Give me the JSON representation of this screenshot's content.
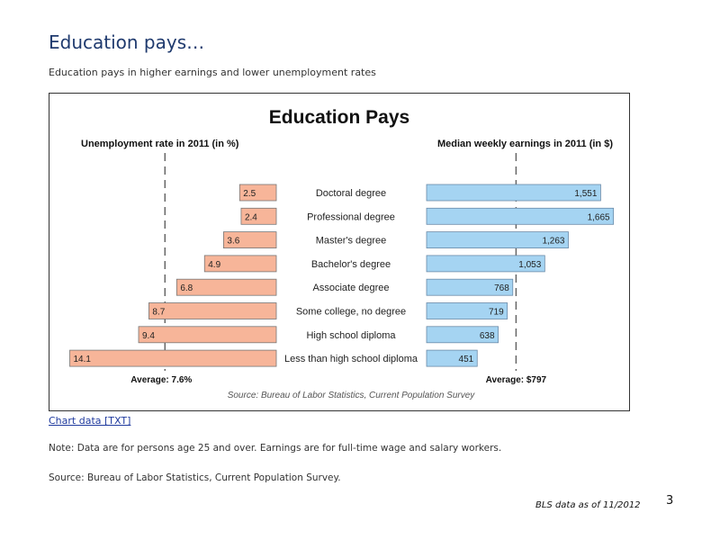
{
  "slide": {
    "title": "Education pays…",
    "subtitle": "Education pays in higher earnings and lower unemployment rates",
    "chart_link": "Chart data [TXT]",
    "note": "Note: Data are for persons age 25 and over. Earnings are for full-time wage and salary workers.",
    "source": "Source: Bureau of Labor Statistics, Current Population Survey.",
    "data_date": "BLS data as of 11/2012",
    "page_number": "3"
  },
  "chart_data": {
    "type": "bar",
    "title": "Education Pays",
    "source": "Source: Bureau of Labor Statistics, Current Population Survey",
    "categories": [
      "Doctoral degree",
      "Professional degree",
      "Master's degree",
      "Bachelor's degree",
      "Associate degree",
      "Some college, no degree",
      "High school diploma",
      "Less than high school diploma"
    ],
    "unemployment": {
      "label": "Unemployment rate in 2011 (in %)",
      "values": [
        2.5,
        2.4,
        3.6,
        4.9,
        6.8,
        8.7,
        9.4,
        14.1
      ],
      "value_labels": [
        "2.5",
        "2.4",
        "3.6",
        "4.9",
        "6.8",
        "8.7",
        "9.4",
        "14.1"
      ],
      "average": 7.6,
      "average_label": "Average: 7.6%",
      "color": "#f7b599",
      "xlim": [
        0,
        14.5
      ]
    },
    "earnings": {
      "label": "Median weekly earnings in 2011 (in $)",
      "values": [
        1551,
        1665,
        1263,
        1053,
        768,
        719,
        638,
        451
      ],
      "value_labels": [
        "1,551",
        "1,665",
        "1,263",
        "1,053",
        "768",
        "719",
        "638",
        "451"
      ],
      "average": 797,
      "average_label": "Average: $797",
      "color": "#a5d4f2",
      "xlim": [
        0,
        1700
      ]
    }
  }
}
